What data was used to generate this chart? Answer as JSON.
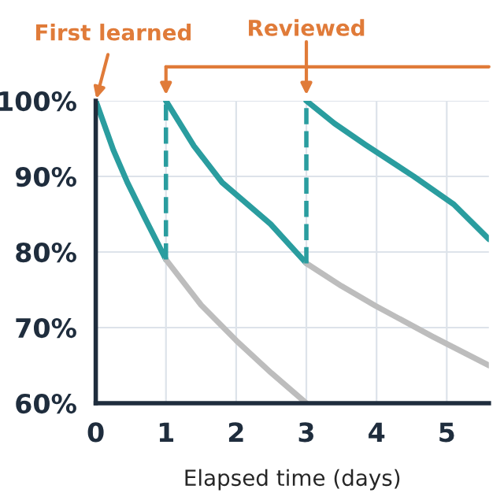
{
  "chart_data": {
    "type": "line",
    "xlabel": "Elapsed time (days)",
    "xlim": [
      0,
      5.6
    ],
    "xticks": [
      0,
      1,
      2,
      3,
      4,
      5
    ],
    "ylim": [
      60,
      100
    ],
    "yticks": [
      {
        "value": 60,
        "label": "60%"
      },
      {
        "value": 70,
        "label": "70%"
      },
      {
        "value": 80,
        "label": "80%"
      },
      {
        "value": 90,
        "label": "90%"
      },
      {
        "value": 100,
        "label": "100%"
      }
    ],
    "grid": true,
    "marker": "none",
    "annotations": [
      {
        "text": "First learned",
        "x": 0,
        "y": 100
      },
      {
        "text": "Reviewed",
        "x": 3,
        "y": 100
      }
    ],
    "series": [
      {
        "color": "#2a9d9f",
        "x": [
          0,
          0.25,
          0.45,
          0.7,
          1
        ],
        "values": [
          100,
          93.5,
          89.2,
          84.5,
          79
        ]
      },
      {
        "color": "#2a9d9f",
        "x": [
          1,
          1.4,
          1.8,
          2.49,
          3
        ],
        "values": [
          100,
          94,
          89.2,
          83.7,
          78.5
        ]
      },
      {
        "color": "#2a9d9f",
        "x": [
          3,
          3.4,
          3.84,
          4.53,
          5.1,
          5.6
        ],
        "values": [
          100,
          97,
          94.2,
          90,
          86.3,
          81.7
        ]
      },
      {
        "color": "#bdbdbd",
        "x": [
          1,
          1.5,
          2,
          2.5,
          3
        ],
        "values": [
          79,
          73,
          68.3,
          64,
          60
        ]
      },
      {
        "color": "#bdbdbd",
        "x": [
          3,
          3.5,
          3.98,
          4.8,
          5.6
        ],
        "values": [
          78.5,
          75.5,
          72.9,
          68.8,
          65
        ]
      },
      {
        "color": "#2a9d9f",
        "line_style": "dashed",
        "x": [
          1,
          1
        ],
        "values": [
          79,
          100
        ]
      },
      {
        "color": "#2a9d9f",
        "line_style": "dashed",
        "x": [
          3,
          3
        ],
        "values": [
          78.5,
          100
        ]
      }
    ]
  }
}
